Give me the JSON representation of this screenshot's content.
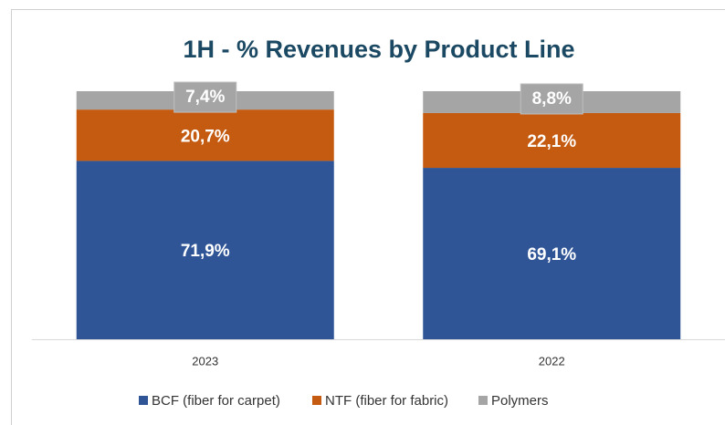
{
  "chart_data": {
    "type": "stacked_bar",
    "title": "1H - % Revenues by Product Line",
    "categories": [
      "2023",
      "2022"
    ],
    "ylim": [
      0,
      100
    ],
    "series": [
      {
        "name": "BCF (fiber for carpet)",
        "color": "#2f5597",
        "values": [
          71.9,
          69.1
        ],
        "value_labels": [
          "71,9%",
          "69,1%"
        ]
      },
      {
        "name": "NTF (fiber for fabric)",
        "color": "#c55a11",
        "values": [
          20.7,
          22.1
        ],
        "value_labels": [
          "20,7%",
          "22,1%"
        ]
      },
      {
        "name": "Polymers",
        "color": "#a5a5a5",
        "values": [
          7.4,
          8.8
        ],
        "value_labels": [
          "7,4%",
          "8,8%"
        ]
      }
    ]
  }
}
